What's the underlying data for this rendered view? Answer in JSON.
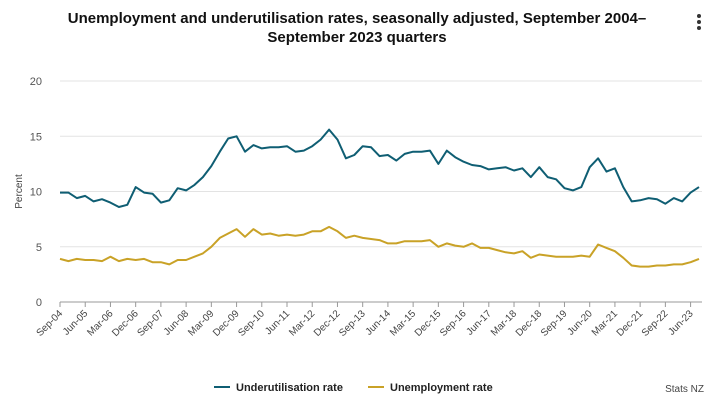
{
  "chart_data": {
    "type": "line",
    "title": "Unemployment and underutilisation rates, seasonally adjusted, September 2004–September 2023 quarters",
    "xlabel": "",
    "ylabel": "Percent",
    "ylim": [
      0,
      20
    ],
    "yticks": [
      0,
      5,
      10,
      15,
      20
    ],
    "xticks": [
      "Sep-04",
      "Jun-05",
      "Mar-06",
      "Dec-06",
      "Sep-07",
      "Jun-08",
      "Mar-09",
      "Dec-09",
      "Sep-10",
      "Jun-11",
      "Mar-12",
      "Dec-12",
      "Sep-13",
      "Jun-14",
      "Mar-15",
      "Dec-15",
      "Sep-16",
      "Jun-17",
      "Mar-18",
      "Dec-18",
      "Sep-19",
      "Jun-20",
      "Mar-21",
      "Dec-21",
      "Sep-22",
      "Jun-23"
    ],
    "x_start": "Sep-04",
    "period": "quarterly",
    "legend_position": "bottom",
    "series": [
      {
        "name": "Underutilisation rate",
        "color": "#0f5e73",
        "values": [
          9.9,
          9.9,
          9.4,
          9.6,
          9.1,
          9.3,
          9.0,
          8.6,
          8.8,
          10.4,
          9.9,
          9.8,
          9.0,
          9.2,
          10.3,
          10.1,
          10.6,
          11.3,
          12.3,
          13.6,
          14.8,
          15.0,
          13.6,
          14.2,
          13.9,
          14.0,
          14.0,
          14.1,
          13.6,
          13.7,
          14.1,
          14.7,
          15.6,
          14.7,
          13.0,
          13.3,
          14.1,
          14.0,
          13.2,
          13.3,
          12.8,
          13.4,
          13.6,
          13.6,
          13.7,
          12.5,
          13.7,
          13.1,
          12.7,
          12.4,
          12.3,
          12.0,
          12.1,
          12.2,
          11.9,
          12.1,
          11.3,
          12.2,
          11.3,
          11.1,
          10.3,
          10.1,
          10.4,
          12.2,
          13.0,
          11.8,
          12.1,
          10.4,
          9.1,
          9.2,
          9.4,
          9.3,
          8.9,
          9.4,
          9.1,
          9.9,
          10.4
        ]
      },
      {
        "name": "Unemployment rate",
        "color": "#c9a227",
        "values": [
          3.9,
          3.7,
          3.9,
          3.8,
          3.8,
          3.7,
          4.1,
          3.7,
          3.9,
          3.8,
          3.9,
          3.6,
          3.6,
          3.4,
          3.8,
          3.8,
          4.1,
          4.4,
          5.0,
          5.8,
          6.2,
          6.6,
          5.9,
          6.6,
          6.1,
          6.2,
          6.0,
          6.1,
          6.0,
          6.1,
          6.4,
          6.4,
          6.8,
          6.4,
          5.8,
          6.0,
          5.8,
          5.7,
          5.6,
          5.3,
          5.3,
          5.5,
          5.5,
          5.5,
          5.6,
          5.0,
          5.3,
          5.1,
          5.0,
          5.3,
          4.9,
          4.9,
          4.7,
          4.5,
          4.4,
          4.6,
          4.0,
          4.3,
          4.2,
          4.1,
          4.1,
          4.1,
          4.2,
          4.1,
          5.2,
          4.9,
          4.6,
          4.0,
          3.3,
          3.2,
          3.2,
          3.3,
          3.3,
          3.4,
          3.4,
          3.6,
          3.9
        ]
      }
    ]
  },
  "credit": "Stats NZ"
}
